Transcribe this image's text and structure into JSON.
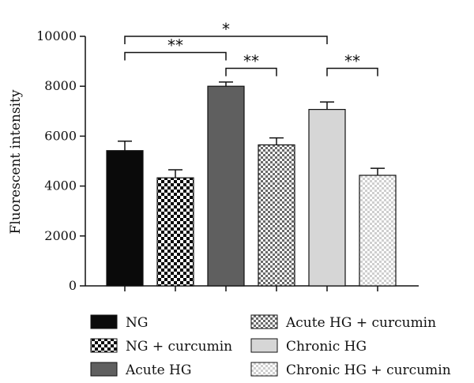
{
  "chart_data": {
    "type": "bar",
    "ylabel": "Fluorescent intensity",
    "ylim": [
      0,
      10000
    ],
    "yticks": [
      0,
      2000,
      4000,
      6000,
      8000,
      10000
    ],
    "ytick_labels": [
      "0",
      "2000",
      "4000",
      "6000",
      "8000",
      "10000"
    ],
    "grid": false,
    "legend_position": "bottom",
    "categories": [
      "NG",
      "NG + curcumin",
      "Acute HG",
      "Acute HG + curcumin",
      "Chronic HG",
      "Chronic HG + curcumin"
    ],
    "values": [
      5420,
      4330,
      8000,
      5650,
      7070,
      4430
    ],
    "errors": [
      380,
      320,
      170,
      280,
      300,
      280
    ],
    "fills": [
      {
        "type": "solid",
        "color": "#0a0a0a"
      },
      {
        "type": "checker",
        "color": "#0a0a0a",
        "size": 4
      },
      {
        "type": "solid",
        "color": "#5f5f5f"
      },
      {
        "type": "checker",
        "color": "#6a6a6a",
        "size": 3
      },
      {
        "type": "solid",
        "color": "#d6d6d6"
      },
      {
        "type": "checker",
        "color": "#cfcfcf",
        "size": 3
      }
    ],
    "significance": [
      {
        "from": 0,
        "to": 4,
        "label": "*",
        "level": 10000
      },
      {
        "from": 0,
        "to": 2,
        "label": "**",
        "level": 9350
      },
      {
        "from": 2,
        "to": 3,
        "label": "**",
        "level": 8720
      },
      {
        "from": 4,
        "to": 5,
        "label": "**",
        "level": 8720
      }
    ]
  }
}
